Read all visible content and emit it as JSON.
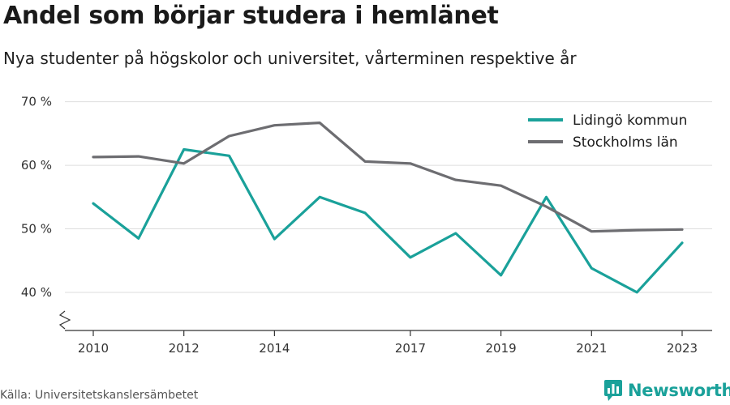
{
  "header": {
    "title": "Andel som börjar studera i hemlänet",
    "subtitle": "Nya studenter på högskolor och universitet, vårterminen respektive år"
  },
  "footer": {
    "source": "Källa: Universitetskanslersämbetet",
    "brand": "Newsworthy",
    "brand_icon": "newsworthy-logo-icon"
  },
  "colors": {
    "lidingo": "#1aa19a",
    "stockholm": "#6d6d71",
    "grid": "#dddddd",
    "axis": "#333333",
    "brand": "#1aa19a"
  },
  "chart_data": {
    "type": "line",
    "x": [
      2010,
      2011,
      2012,
      2013,
      2014,
      2015,
      2016,
      2017,
      2018,
      2019,
      2020,
      2021,
      2022,
      2023
    ],
    "x_tick_labels": [
      "2010",
      "2012",
      "2014",
      "2017",
      "2019",
      "2021",
      "2023"
    ],
    "x_tick_values": [
      2010,
      2012,
      2014,
      2017,
      2019,
      2021,
      2023
    ],
    "y_ticks": [
      40,
      50,
      60,
      70
    ],
    "y_tick_labels": [
      "40 %",
      "50 %",
      "60 %",
      "70 %"
    ],
    "ylim": [
      34,
      72
    ],
    "y_axis_break": true,
    "grid": true,
    "legend_position": "top-right",
    "series": [
      {
        "name": "Lidingö kommun",
        "color": "#1aa19a",
        "values": [
          54.0,
          48.5,
          62.5,
          61.5,
          48.4,
          55.0,
          52.5,
          45.5,
          49.3,
          42.7,
          55.0,
          43.8,
          40.0,
          47.8
        ]
      },
      {
        "name": "Stockholms län",
        "color": "#6d6d71",
        "values": [
          61.3,
          61.4,
          60.3,
          64.6,
          66.3,
          66.7,
          60.6,
          60.3,
          57.7,
          56.8,
          53.5,
          49.6,
          49.8,
          49.9
        ]
      }
    ]
  }
}
